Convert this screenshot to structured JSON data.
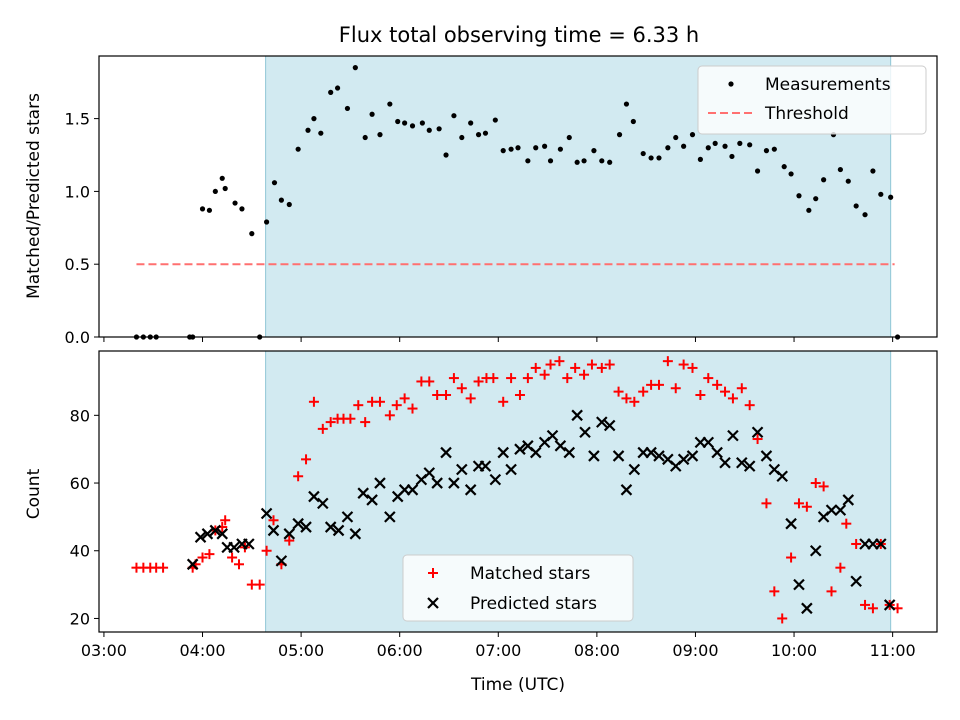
{
  "title": "Flux total observing time = 6.33 h",
  "colors": {
    "observing_window": "#add8e6",
    "measurements": "#000000",
    "threshold": "#ff7070",
    "matched": "#ff0000",
    "predicted": "#000000"
  },
  "chart_data": [
    {
      "type": "scatter",
      "ylabel": "Matched/Predicted stars",
      "xlim_hours": [
        2.95,
        11.45
      ],
      "ylim": [
        0.0,
        1.93
      ],
      "yticks": [
        "0.0",
        "0.5",
        "1.0",
        "1.5"
      ],
      "ytick_values": [
        0.0,
        0.5,
        1.0,
        1.5
      ],
      "observing_window_hours": [
        4.64,
        10.98
      ],
      "legend": {
        "position": "top-right",
        "entries": [
          "Measurements",
          "Threshold"
        ]
      },
      "threshold": {
        "name": "Threshold",
        "y": 0.5,
        "x_hours": [
          3.33,
          11.02
        ],
        "style": "dashed"
      },
      "series": [
        {
          "name": "Measurements",
          "x_hours": [
            3.33,
            3.4,
            3.47,
            3.53,
            3.87,
            3.9,
            4.0,
            4.07,
            4.13,
            4.2,
            4.23,
            4.33,
            4.4,
            4.5,
            4.58,
            4.65,
            4.73,
            4.8,
            4.88,
            4.97,
            5.07,
            5.13,
            5.2,
            5.3,
            5.37,
            5.47,
            5.55,
            5.65,
            5.72,
            5.8,
            5.9,
            5.98,
            6.05,
            6.13,
            6.23,
            6.3,
            6.4,
            6.47,
            6.55,
            6.63,
            6.72,
            6.8,
            6.87,
            6.97,
            7.05,
            7.13,
            7.2,
            7.3,
            7.38,
            7.47,
            7.53,
            7.63,
            7.72,
            7.8,
            7.87,
            7.97,
            8.05,
            8.13,
            8.23,
            8.3,
            8.37,
            8.47,
            8.55,
            8.63,
            8.72,
            8.8,
            8.88,
            8.97,
            9.05,
            9.13,
            9.2,
            9.3,
            9.37,
            9.45,
            9.55,
            9.63,
            9.72,
            9.8,
            9.9,
            9.97,
            10.05,
            10.15,
            10.22,
            10.3,
            10.4,
            10.47,
            10.55,
            10.63,
            10.72,
            10.8,
            10.88,
            10.98,
            11.05
          ],
          "y": [
            0.0,
            0.0,
            0.0,
            0.0,
            0.0,
            0.0,
            0.88,
            0.87,
            1.0,
            1.09,
            1.02,
            0.92,
            0.88,
            0.71,
            0.0,
            0.79,
            1.06,
            0.94,
            0.91,
            1.29,
            1.42,
            1.5,
            1.4,
            1.68,
            1.71,
            1.57,
            1.85,
            1.37,
            1.53,
            1.39,
            1.6,
            1.48,
            1.47,
            1.45,
            1.47,
            1.42,
            1.43,
            1.25,
            1.52,
            1.37,
            1.47,
            1.39,
            1.4,
            1.49,
            1.28,
            1.29,
            1.3,
            1.21,
            1.3,
            1.31,
            1.21,
            1.29,
            1.37,
            1.2,
            1.21,
            1.28,
            1.21,
            1.2,
            1.39,
            1.6,
            1.48,
            1.26,
            1.23,
            1.23,
            1.3,
            1.37,
            1.31,
            1.39,
            1.22,
            1.3,
            1.33,
            1.31,
            1.24,
            1.33,
            1.32,
            1.14,
            1.28,
            1.29,
            1.17,
            1.12,
            0.97,
            0.87,
            0.95,
            1.08,
            1.39,
            1.15,
            1.07,
            0.9,
            0.84,
            1.14,
            0.98,
            0.96,
            0.0
          ]
        }
      ]
    },
    {
      "type": "scatter",
      "xlabel": "Time (UTC)",
      "ylabel": "Count",
      "xlim_hours": [
        2.95,
        11.45
      ],
      "ylim": [
        16,
        99
      ],
      "yticks": [
        "20",
        "40",
        "60",
        "80"
      ],
      "ytick_values": [
        20,
        40,
        60,
        80
      ],
      "xticks": [
        "03:00",
        "04:00",
        "05:00",
        "06:00",
        "07:00",
        "08:00",
        "09:00",
        "10:00",
        "11:00"
      ],
      "xtick_hours": [
        3,
        4,
        5,
        6,
        7,
        8,
        9,
        10,
        11
      ],
      "observing_window_hours": [
        4.64,
        10.98
      ],
      "legend": {
        "position": "bottom-center",
        "entries": [
          "Matched stars",
          "Predicted stars"
        ]
      },
      "series": [
        {
          "name": "Matched stars",
          "marker": "+",
          "x_hours": [
            3.33,
            3.4,
            3.47,
            3.53,
            3.6,
            3.9,
            3.93,
            4.0,
            4.07,
            4.13,
            4.2,
            4.23,
            4.3,
            4.37,
            4.43,
            4.5,
            4.58,
            4.65,
            4.72,
            4.8,
            4.88,
            4.97,
            5.05,
            5.13,
            5.22,
            5.3,
            5.37,
            5.43,
            5.5,
            5.58,
            5.65,
            5.72,
            5.8,
            5.9,
            5.97,
            6.05,
            6.13,
            6.22,
            6.3,
            6.38,
            6.47,
            6.55,
            6.63,
            6.72,
            6.8,
            6.88,
            6.95,
            7.05,
            7.13,
            7.22,
            7.3,
            7.38,
            7.47,
            7.53,
            7.62,
            7.7,
            7.78,
            7.87,
            7.95,
            8.05,
            8.13,
            8.22,
            8.3,
            8.38,
            8.47,
            8.55,
            8.63,
            8.72,
            8.8,
            8.88,
            8.97,
            9.05,
            9.13,
            9.22,
            9.3,
            9.38,
            9.47,
            9.55,
            9.63,
            9.72,
            9.8,
            9.88,
            9.97,
            10.05,
            10.13,
            10.22,
            10.3,
            10.38,
            10.47,
            10.53,
            10.63,
            10.72,
            10.8,
            10.88,
            10.97,
            11.05
          ],
          "y": [
            35,
            35,
            35,
            35,
            35,
            35,
            36,
            38,
            39,
            46,
            47,
            49,
            38,
            36,
            41,
            30,
            30,
            40,
            49,
            36,
            43,
            62,
            67,
            84,
            76,
            78,
            79,
            79,
            79,
            83,
            78,
            84,
            84,
            80,
            83,
            85,
            82,
            90,
            90,
            86,
            86,
            91,
            88,
            85,
            90,
            91,
            91,
            84,
            91,
            86,
            91,
            94,
            92,
            95,
            96,
            91,
            94,
            92,
            95,
            94,
            95,
            87,
            85,
            84,
            87,
            89,
            89,
            96,
            88,
            95,
            94,
            86,
            91,
            89,
            87,
            85,
            88,
            83,
            73,
            54,
            28,
            20,
            38,
            54,
            53,
            60,
            59,
            28,
            35,
            48,
            42,
            24,
            23,
            42,
            24,
            23
          ],
          "note_unused": ""
        },
        {
          "name": "Predicted stars",
          "marker": "x",
          "x_hours": [
            3.9,
            3.98,
            4.05,
            4.13,
            4.2,
            4.25,
            4.32,
            4.4,
            4.47,
            4.65,
            4.72,
            4.8,
            4.88,
            4.97,
            5.05,
            5.13,
            5.22,
            5.3,
            5.38,
            5.47,
            5.55,
            5.63,
            5.72,
            5.8,
            5.9,
            5.98,
            6.05,
            6.13,
            6.22,
            6.3,
            6.38,
            6.47,
            6.55,
            6.63,
            6.72,
            6.8,
            6.87,
            6.97,
            7.05,
            7.13,
            7.22,
            7.3,
            7.38,
            7.47,
            7.55,
            7.63,
            7.72,
            7.8,
            7.88,
            7.97,
            8.05,
            8.13,
            8.22,
            8.3,
            8.38,
            8.47,
            8.55,
            8.63,
            8.72,
            8.8,
            8.88,
            8.97,
            9.05,
            9.13,
            9.22,
            9.3,
            9.38,
            9.47,
            9.55,
            9.63,
            9.72,
            9.8,
            9.88,
            9.97,
            10.05,
            10.13,
            10.22,
            10.3,
            10.38,
            10.47,
            10.55,
            10.63,
            10.72,
            10.8,
            10.88,
            10.97
          ],
          "y": [
            36,
            44,
            45,
            46,
            45,
            41,
            41,
            42,
            42,
            51,
            46,
            37,
            45,
            48,
            47,
            56,
            54,
            47,
            46,
            50,
            45,
            57,
            55,
            60,
            50,
            56,
            58,
            58,
            61,
            63,
            60,
            69,
            60,
            64,
            58,
            65,
            65,
            61,
            69,
            64,
            70,
            71,
            69,
            72,
            74,
            71,
            69,
            80,
            75,
            68,
            78,
            77,
            68,
            58,
            64,
            69,
            69,
            68,
            67,
            65,
            67,
            68,
            72,
            72,
            69,
            66,
            74,
            66,
            65,
            75,
            68,
            64,
            62,
            48,
            30,
            23,
            40,
            50,
            52,
            52,
            55,
            31,
            42,
            42,
            42,
            24
          ]
        }
      ]
    }
  ]
}
